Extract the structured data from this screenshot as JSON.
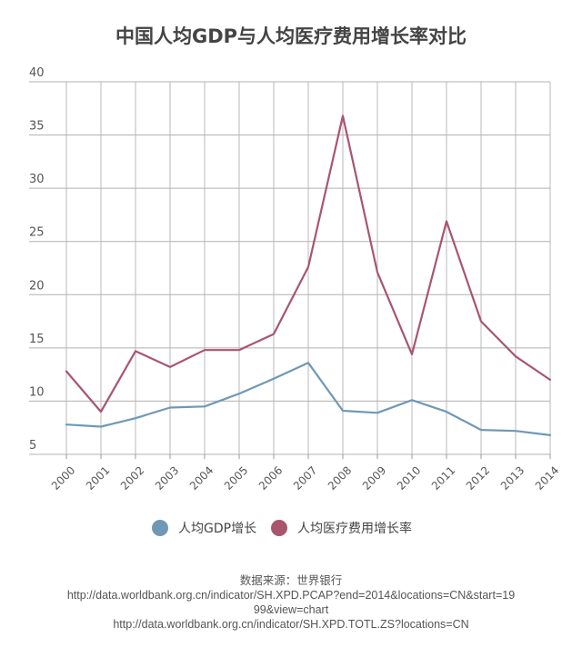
{
  "chart_data": {
    "type": "line",
    "title": "中国人均GDP与人均医疗费用增长率对比",
    "xlabel": "",
    "ylabel": "",
    "categories": [
      "2000",
      "2001",
      "2002",
      "2003",
      "2004",
      "2005",
      "2006",
      "2007",
      "2008",
      "2009",
      "2010",
      "2011",
      "2012",
      "2013",
      "2014"
    ],
    "y_ticks": [
      "5",
      "10",
      "15",
      "20",
      "25",
      "30",
      "35",
      "40"
    ],
    "ylim": [
      5,
      40
    ],
    "grid": true,
    "legend_position": "bottom",
    "series": [
      {
        "name": "人均GDP增长",
        "color": "#6f98b6",
        "values": [
          7.8,
          7.6,
          8.4,
          9.4,
          9.5,
          10.7,
          12.1,
          13.6,
          9.1,
          8.9,
          10.1,
          9.0,
          7.3,
          7.2,
          6.8
        ]
      },
      {
        "name": "人均医疗费用增长率",
        "color": "#a9556f",
        "values": [
          12.8,
          9.0,
          14.7,
          13.2,
          14.8,
          14.8,
          16.3,
          22.6,
          36.8,
          22.1,
          14.4,
          26.9,
          17.5,
          14.2,
          12.0
        ]
      }
    ]
  },
  "source": {
    "label": "数据来源：世界银行",
    "line1": "http://data.worldbank.org.cn/indicator/SH.XPD.PCAP?end=2014&locations=CN&start=19",
    "line2": "99&view=chart",
    "line3": "http://data.worldbank.org.cn/indicator/SH.XPD.TOTL.ZS?locations=CN"
  }
}
